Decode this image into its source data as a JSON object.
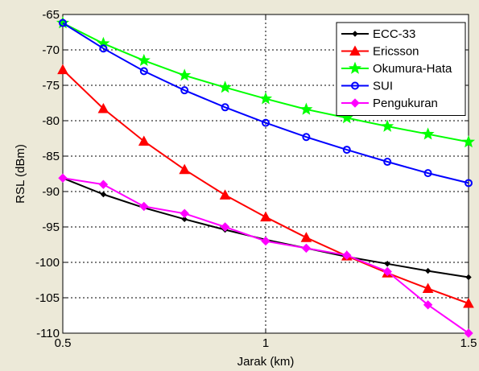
{
  "chart_data": {
    "type": "line",
    "title": "",
    "xlabel": "Jarak (km)",
    "ylabel": "RSL (dBm)",
    "xlim": [
      0.5,
      1.5
    ],
    "ylim": [
      -110,
      -65
    ],
    "xticks": [
      0.5,
      1,
      1.5
    ],
    "xtick_labels": [
      "0.5",
      "1",
      "1.5"
    ],
    "yticks": [
      -65,
      -70,
      -75,
      -80,
      -85,
      -90,
      -95,
      -100,
      -105,
      -110
    ],
    "ytick_labels": [
      "-65",
      "-70",
      "-75",
      "-80",
      "-85",
      "-90",
      "-95",
      "-100",
      "-105",
      "-110"
    ],
    "grid": true,
    "legend_position": "top-right",
    "x": [
      0.5,
      0.6,
      0.7,
      0.8,
      0.9,
      1.0,
      1.1,
      1.2,
      1.3,
      1.4,
      1.5
    ],
    "series": [
      {
        "name": "ECC-33",
        "color": "#000000",
        "marker": "diamond-small",
        "values": [
          -88.1,
          -90.4,
          -92.3,
          -93.9,
          -95.4,
          -96.8,
          -98.0,
          -99.2,
          -100.2,
          -101.2,
          -102.1
        ]
      },
      {
        "name": "Ericsson",
        "color": "#ff0000",
        "marker": "triangle",
        "values": [
          -72.8,
          -78.3,
          -82.9,
          -86.9,
          -90.5,
          -93.6,
          -96.5,
          -99.1,
          -101.5,
          -103.7,
          -105.8
        ]
      },
      {
        "name": "Okumura-Hata",
        "color": "#00ff00",
        "marker": "star",
        "values": [
          -66.2,
          -69.1,
          -71.5,
          -73.6,
          -75.3,
          -76.9,
          -78.4,
          -79.6,
          -80.8,
          -81.9,
          -83.0
        ]
      },
      {
        "name": "SUI",
        "color": "#0000ff",
        "marker": "circle",
        "values": [
          -66.2,
          -69.8,
          -73.0,
          -75.7,
          -78.1,
          -80.3,
          -82.3,
          -84.1,
          -85.8,
          -87.4,
          -88.8
        ]
      },
      {
        "name": "Pengukuran",
        "color": "#ff00ff",
        "marker": "diamond",
        "values": [
          -88.1,
          -89.0,
          -92.1,
          -93.1,
          -95.0,
          -97.0,
          -98.0,
          -99.0,
          -101.3,
          -106.0,
          -110.0
        ]
      }
    ]
  }
}
